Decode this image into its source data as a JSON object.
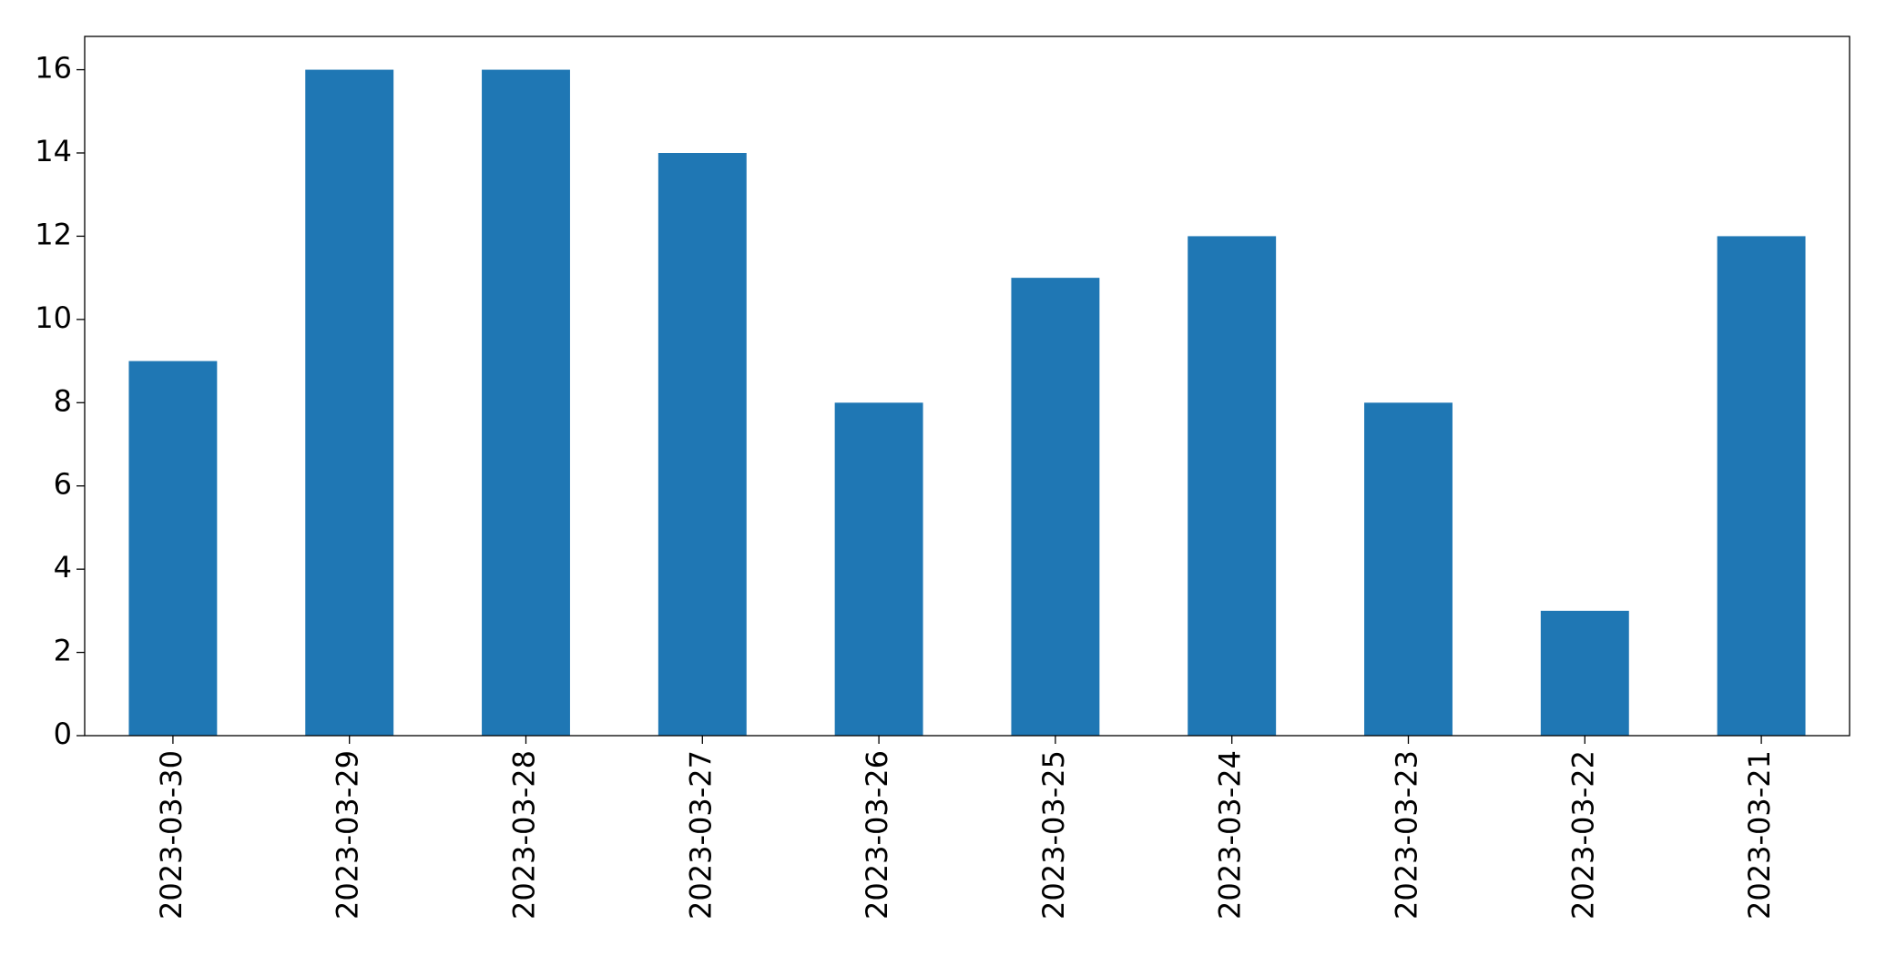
{
  "chart_data": {
    "type": "bar",
    "categories": [
      "2023-03-30",
      "2023-03-29",
      "2023-03-28",
      "2023-03-27",
      "2023-03-26",
      "2023-03-25",
      "2023-03-24",
      "2023-03-23",
      "2023-03-22",
      "2023-03-21"
    ],
    "values": [
      9,
      16,
      16,
      14,
      8,
      11,
      12,
      8,
      3,
      12
    ],
    "color": "#1f77b4",
    "ylim": [
      0,
      16.8
    ],
    "yticks": [
      0,
      2,
      4,
      6,
      8,
      10,
      12,
      14,
      16
    ],
    "grid": false
  }
}
